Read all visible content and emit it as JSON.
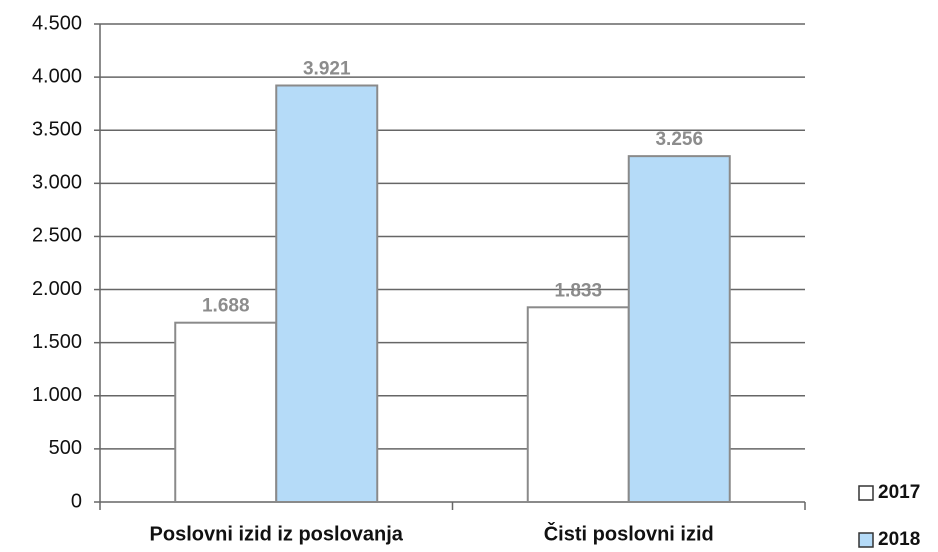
{
  "chart_data": {
    "type": "bar",
    "categories": [
      "Poslovni izid iz poslovanja",
      "Čisti poslovni izid"
    ],
    "series": [
      {
        "name": "2017",
        "color": "#ffffff",
        "values": [
          1688,
          1833
        ],
        "value_labels": [
          "1.688",
          "1.833"
        ]
      },
      {
        "name": "2018",
        "color": "#b5dbf8",
        "values": [
          3921,
          3256
        ],
        "value_labels": [
          "3.921",
          "3.256"
        ]
      }
    ],
    "ylim": [
      0,
      4500
    ],
    "yticks": [
      0,
      500,
      {
        "value": 1000,
        "label": "1.000"
      },
      {
        "value": 1500,
        "label": "1.500"
      },
      {
        "value": 2000,
        "label": "2.000"
      },
      {
        "value": 2500,
        "label": "2.500"
      },
      {
        "value": 3000,
        "label": "3.000"
      },
      {
        "value": 3500,
        "label": "3.500"
      },
      {
        "value": 4000,
        "label": "4.000"
      },
      {
        "value": 4500,
        "label": "4.500"
      }
    ],
    "grid": true
  }
}
